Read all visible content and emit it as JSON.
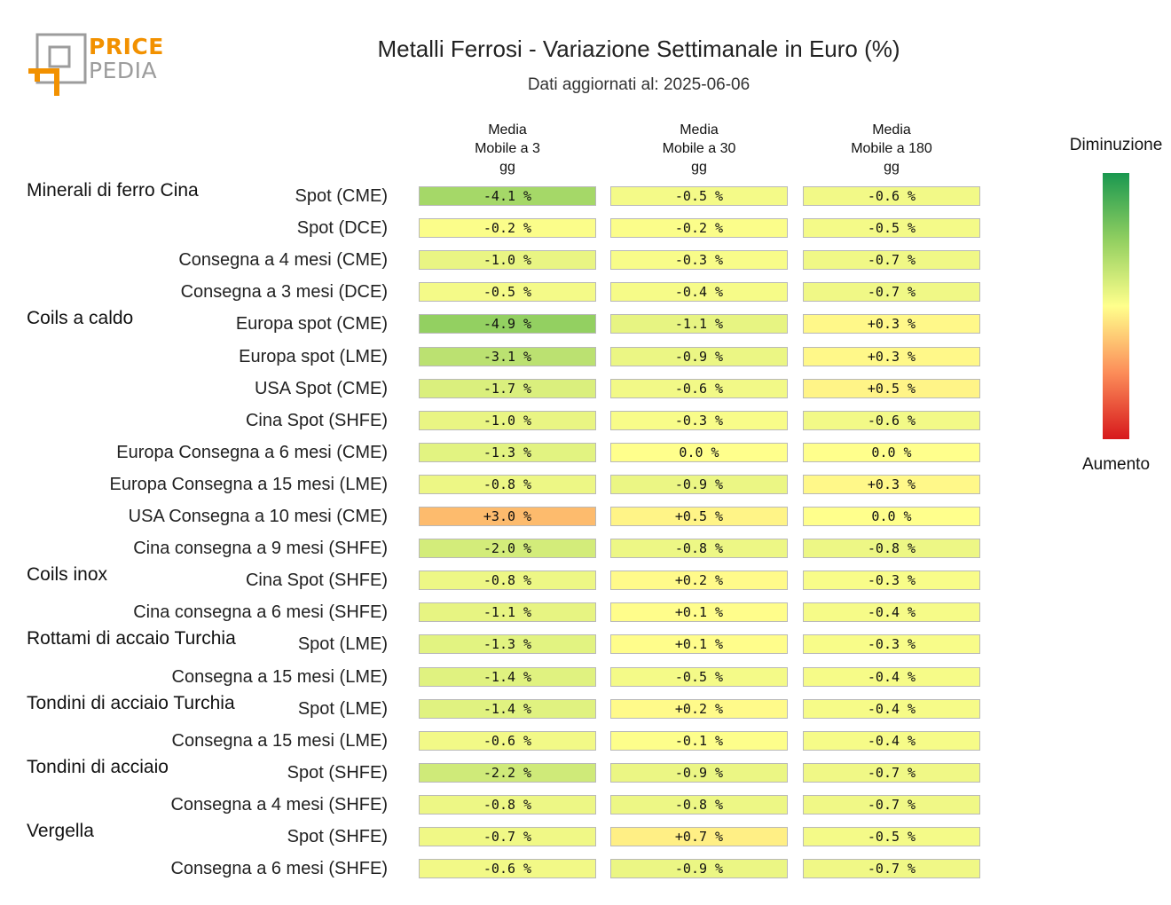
{
  "logo": {
    "line1": "PRICE",
    "line2": "PEDIA",
    "orange": "#f29100",
    "gray": "#9c9c9c"
  },
  "chart_data": {
    "type": "heatmap",
    "title": "Metalli Ferrosi - Variazione Settimanale in Euro (%)",
    "subtitle": "Dati aggiornati al: 2025-06-06",
    "columns": [
      "Media\nMobile a 3\ngg",
      "Media\nMobile a 30\ngg",
      "Media\nMobile a 180\ngg"
    ],
    "rows": [
      {
        "group": "Minerali di ferro Cina",
        "label": "Spot (CME)",
        "values": [
          -4.1,
          -0.5,
          -0.6
        ],
        "texts": [
          "-4.1 %",
          "-0.5 %",
          "-0.6 %"
        ]
      },
      {
        "group": "",
        "label": "Spot (DCE)",
        "values": [
          -0.2,
          -0.2,
          -0.5
        ],
        "texts": [
          "-0.2 %",
          "-0.2 %",
          "-0.5 %"
        ]
      },
      {
        "group": "",
        "label": "Consegna a 4 mesi (CME)",
        "values": [
          -1.0,
          -0.3,
          -0.7
        ],
        "texts": [
          "-1.0 %",
          "-0.3 %",
          "-0.7 %"
        ]
      },
      {
        "group": "",
        "label": "Consegna a 3 mesi (DCE)",
        "values": [
          -0.5,
          -0.4,
          -0.7
        ],
        "texts": [
          "-0.5 %",
          "-0.4 %",
          "-0.7 %"
        ]
      },
      {
        "group": "Coils a caldo",
        "label": "Europa spot (CME)",
        "values": [
          -4.9,
          -1.1,
          0.3
        ],
        "texts": [
          "-4.9 %",
          "-1.1 %",
          "+0.3 %"
        ]
      },
      {
        "group": "",
        "label": "Europa spot (LME)",
        "values": [
          -3.1,
          -0.9,
          0.3
        ],
        "texts": [
          "-3.1 %",
          "-0.9 %",
          "+0.3 %"
        ]
      },
      {
        "group": "",
        "label": "USA Spot (CME)",
        "values": [
          -1.7,
          -0.6,
          0.5
        ],
        "texts": [
          "-1.7 %",
          "-0.6 %",
          "+0.5 %"
        ]
      },
      {
        "group": "",
        "label": "Cina Spot (SHFE)",
        "values": [
          -1.0,
          -0.3,
          -0.6
        ],
        "texts": [
          "-1.0 %",
          "-0.3 %",
          "-0.6 %"
        ]
      },
      {
        "group": "",
        "label": "Europa Consegna a 6 mesi (CME)",
        "values": [
          -1.3,
          0.0,
          0.0
        ],
        "texts": [
          "-1.3 %",
          "0.0 %",
          "0.0 %"
        ]
      },
      {
        "group": "",
        "label": "Europa Consegna a 15 mesi (LME)",
        "values": [
          -0.8,
          -0.9,
          0.3
        ],
        "texts": [
          "-0.8 %",
          "-0.9 %",
          "+0.3 %"
        ]
      },
      {
        "group": "",
        "label": "USA Consegna a 10 mesi (CME)",
        "values": [
          3.0,
          0.5,
          0.0
        ],
        "texts": [
          "+3.0 %",
          "+0.5 %",
          "0.0 %"
        ]
      },
      {
        "group": "",
        "label": "Cina consegna a 9 mesi (SHFE)",
        "values": [
          -2.0,
          -0.8,
          -0.8
        ],
        "texts": [
          "-2.0 %",
          "-0.8 %",
          "-0.8 %"
        ]
      },
      {
        "group": "Coils inox",
        "label": "Cina Spot (SHFE)",
        "values": [
          -0.8,
          0.2,
          -0.3
        ],
        "texts": [
          "-0.8 %",
          "+0.2 %",
          "-0.3 %"
        ]
      },
      {
        "group": "",
        "label": "Cina consegna a 6 mesi (SHFE)",
        "values": [
          -1.1,
          0.1,
          -0.4
        ],
        "texts": [
          "-1.1 %",
          "+0.1 %",
          "-0.4 %"
        ]
      },
      {
        "group": "Rottami di accaio Turchia",
        "label": "Spot (LME)",
        "values": [
          -1.3,
          0.1,
          -0.3
        ],
        "texts": [
          "-1.3 %",
          "+0.1 %",
          "-0.3 %"
        ]
      },
      {
        "group": "",
        "label": "Consegna a 15 mesi (LME)",
        "values": [
          -1.4,
          -0.5,
          -0.4
        ],
        "texts": [
          "-1.4 %",
          "-0.5 %",
          "-0.4 %"
        ]
      },
      {
        "group": "Tondini di acciaio Turchia",
        "label": "Spot (LME)",
        "values": [
          -1.4,
          0.2,
          -0.4
        ],
        "texts": [
          "-1.4 %",
          "+0.2 %",
          "-0.4 %"
        ]
      },
      {
        "group": "",
        "label": "Consegna a 15 mesi (LME)",
        "values": [
          -0.6,
          -0.1,
          -0.4
        ],
        "texts": [
          "-0.6 %",
          "-0.1 %",
          "-0.4 %"
        ]
      },
      {
        "group": "Tondini di acciaio",
        "label": "Spot (SHFE)",
        "values": [
          -2.2,
          -0.9,
          -0.7
        ],
        "texts": [
          "-2.2 %",
          "-0.9 %",
          "-0.7 %"
        ]
      },
      {
        "group": "",
        "label": "Consegna a 4 mesi (SHFE)",
        "values": [
          -0.8,
          -0.8,
          -0.7
        ],
        "texts": [
          "-0.8 %",
          "-0.8 %",
          "-0.7 %"
        ]
      },
      {
        "group": "Vergella",
        "label": "Spot (SHFE)",
        "values": [
          -0.7,
          0.7,
          -0.5
        ],
        "texts": [
          "-0.7 %",
          "+0.7 %",
          "-0.5 %"
        ]
      },
      {
        "group": "",
        "label": "Consegna a 6 mesi (SHFE)",
        "values": [
          -0.6,
          -0.9,
          -0.7
        ],
        "texts": [
          "-0.6 %",
          "-0.9 %",
          "-0.7 %"
        ]
      }
    ],
    "legend": {
      "top_label": "Diminuzione",
      "bottom_label": "Aumento",
      "colors": [
        "#1a9850",
        "#91cf60",
        "#ffff8c",
        "#fc8d59",
        "#d7191c"
      ]
    }
  }
}
